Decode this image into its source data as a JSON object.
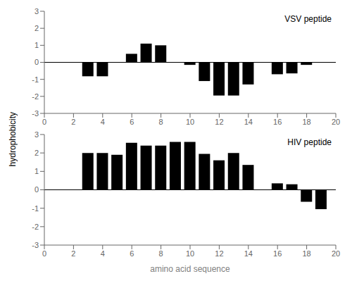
{
  "chart_data": [
    {
      "type": "bar",
      "x": [
        3,
        4,
        6,
        7,
        8,
        10,
        11,
        12,
        13,
        14,
        16,
        17,
        18
      ],
      "values": [
        -0.82,
        -0.82,
        0.5,
        1.1,
        1.0,
        -0.15,
        -1.1,
        -1.95,
        -1.95,
        -1.3,
        -0.7,
        -0.65,
        -0.15
      ],
      "color": "#000000",
      "xlim": [
        0,
        20
      ],
      "ylim": [
        -3,
        3
      ],
      "xticks": [
        0,
        2,
        4,
        6,
        8,
        10,
        12,
        14,
        16,
        18,
        20
      ],
      "yticks": [
        -3,
        -2,
        -1,
        0,
        1,
        2,
        3
      ],
      "annotation": "VSV peptide",
      "ylabel": "hydrophobicity",
      "grid": false
    },
    {
      "type": "bar",
      "x": [
        3,
        4,
        5,
        6,
        7,
        8,
        9,
        10,
        11,
        12,
        13,
        14,
        16,
        17,
        18,
        19
      ],
      "values": [
        2.0,
        2.0,
        1.9,
        2.55,
        2.4,
        2.4,
        2.6,
        2.6,
        1.95,
        1.6,
        2.0,
        1.35,
        0.35,
        0.3,
        -0.65,
        -1.05
      ],
      "color": "#000000",
      "xlim": [
        0,
        20
      ],
      "ylim": [
        -3,
        3
      ],
      "xticks": [
        0,
        2,
        4,
        6,
        8,
        10,
        12,
        14,
        16,
        18,
        20
      ],
      "yticks": [
        -3,
        -2,
        -1,
        0,
        1,
        2,
        3
      ],
      "annotation": "HIV peptide",
      "xlabel": "amino acid sequence",
      "grid": false
    }
  ]
}
